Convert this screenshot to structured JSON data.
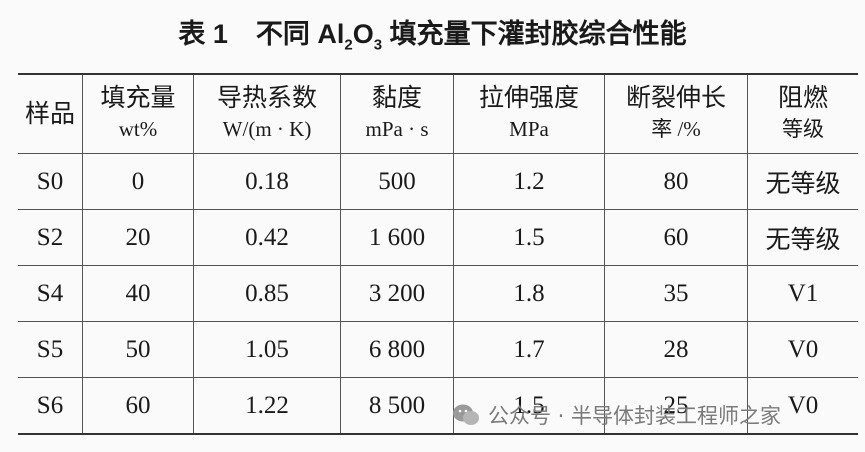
{
  "title": {
    "label": "表 1",
    "parts": [
      "不同 Al",
      "2",
      "O",
      "3",
      " 填充量下灌封胶综合性能"
    ]
  },
  "table": {
    "header": [
      [
        "样品"
      ],
      [
        "填充量",
        "wt%"
      ],
      [
        "导热系数",
        "W/(m · K)"
      ],
      [
        "黏度",
        "mPa · s"
      ],
      [
        "拉伸强度",
        "MPa"
      ],
      [
        "断裂伸长",
        "率 /%"
      ],
      [
        "阻燃",
        "等级"
      ]
    ],
    "rows": [
      [
        "S0",
        "0",
        "0.18",
        "500",
        "1.2",
        "80",
        "无等级"
      ],
      [
        "S2",
        "20",
        "0.42",
        "1 600",
        "1.5",
        "60",
        "无等级"
      ],
      [
        "S4",
        "40",
        "0.85",
        "3 200",
        "1.8",
        "35",
        "V1"
      ],
      [
        "S5",
        "50",
        "1.05",
        "6 800",
        "1.7",
        "28",
        "V0"
      ],
      [
        "S6",
        "60",
        "1.22",
        "8 500",
        "1.5",
        "25",
        "V0"
      ]
    ]
  },
  "watermark": "公众号 · 半导体封装工程师之家"
}
